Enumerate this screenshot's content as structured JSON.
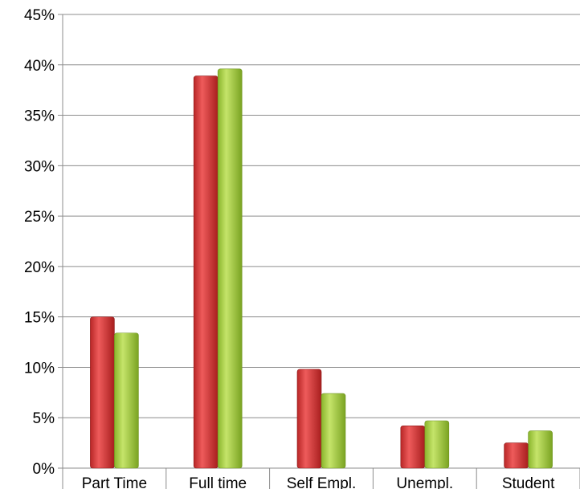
{
  "chart_data": {
    "type": "bar",
    "categories": [
      "Part Time",
      "Full time",
      "Self Empl.",
      "Unempl.",
      "Student"
    ],
    "series": [
      {
        "values": [
          15.0,
          38.9,
          9.8,
          4.2,
          2.5
        ],
        "color": "#d63a3a"
      },
      {
        "values": [
          13.4,
          39.6,
          7.4,
          4.7,
          3.7
        ],
        "color": "#9cc93a"
      }
    ],
    "yticks": [
      "0%",
      "5%",
      "10%",
      "15%",
      "20%",
      "25%",
      "30%",
      "35%",
      "40%",
      "45%"
    ],
    "ylim": [
      0,
      45
    ],
    "grid": true,
    "legend": "none",
    "title": "",
    "xlabel": "",
    "ylabel": ""
  }
}
